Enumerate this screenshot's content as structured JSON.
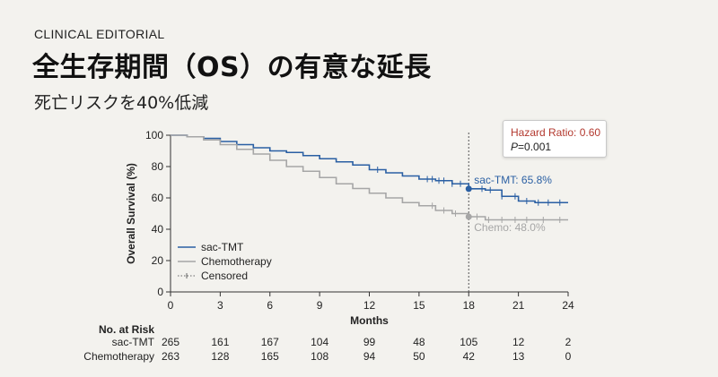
{
  "header": {
    "eyebrow": "CLINICAL EDITORIAL",
    "title": "全生存期間（OS）の有意な延長",
    "subtitle": "死亡リスクを40%低減"
  },
  "hazard_box": {
    "hr_text": "Hazard Ratio: 0.60",
    "p_label": "P",
    "p_value": "=0.001"
  },
  "colors": {
    "sac_tmt": "#2a5fa3",
    "chemo": "#a6a6a6",
    "hazard": "#b3392f"
  },
  "chart_data": {
    "type": "line",
    "xlabel": "Months",
    "ylabel": "Overall Survival (%)",
    "xlim": [
      0,
      24
    ],
    "ylim": [
      0,
      100
    ],
    "xticks": [
      0,
      3,
      6,
      9,
      12,
      15,
      18,
      21,
      24
    ],
    "yticks": [
      0,
      20,
      40,
      60,
      80,
      100
    ],
    "grid": false,
    "legend_position": "bottom-left",
    "legend": [
      "sac-TMT",
      "Chemotherapy",
      "Censored"
    ],
    "reference_line_x": 18,
    "series": [
      {
        "name": "sac-TMT",
        "x": [
          0,
          0.5,
          1,
          2,
          3,
          4,
          5,
          6,
          7,
          8,
          9,
          10,
          11,
          12,
          13,
          14,
          15,
          16,
          17,
          18,
          19,
          20,
          21,
          22,
          23,
          24
        ],
        "y": [
          100,
          100,
          99,
          98,
          96,
          94,
          92,
          90,
          89,
          87,
          85,
          83,
          81,
          78,
          76,
          74,
          72,
          71,
          69,
          65.8,
          65,
          61,
          58,
          57,
          57,
          57
        ],
        "censored_x": [
          12.5,
          15.5,
          15.8,
          16.2,
          16.5,
          17.0,
          17.5,
          18.8,
          19.3,
          20.0,
          20.8,
          21.5,
          22.2,
          22.8,
          23.5
        ],
        "annotation": "sac-TMT: 65.8%"
      },
      {
        "name": "Chemotherapy",
        "x": [
          0,
          0.5,
          1,
          2,
          3,
          4,
          5,
          6,
          7,
          8,
          9,
          10,
          11,
          12,
          13,
          14,
          15,
          16,
          17,
          18,
          19,
          20,
          21,
          22,
          23,
          24
        ],
        "y": [
          100,
          100,
          99,
          97,
          94,
          91,
          88,
          84,
          80,
          77,
          73,
          69,
          66,
          63,
          60,
          57,
          55,
          52,
          50,
          48,
          46,
          46,
          46,
          46,
          46,
          46
        ],
        "censored_x": [
          15.8,
          16.5,
          17.2,
          18.5,
          19.2,
          20.0,
          20.8,
          21.5,
          22.5,
          23.5
        ],
        "annotation": "Chemo: 48.0%"
      }
    ],
    "risk_table": {
      "title": "No. at Risk",
      "timepoints": [
        0,
        3,
        6,
        9,
        12,
        15,
        18,
        21,
        24
      ],
      "rows": [
        {
          "name": "sac-TMT",
          "values": [
            "265",
            "161",
            "167",
            "104",
            "99",
            "48",
            "105",
            "12",
            "2"
          ]
        },
        {
          "name": "Chemotherapy",
          "values": [
            "263",
            "128",
            "165",
            "108",
            "94",
            "50",
            "42",
            "13",
            "0"
          ]
        }
      ]
    }
  }
}
